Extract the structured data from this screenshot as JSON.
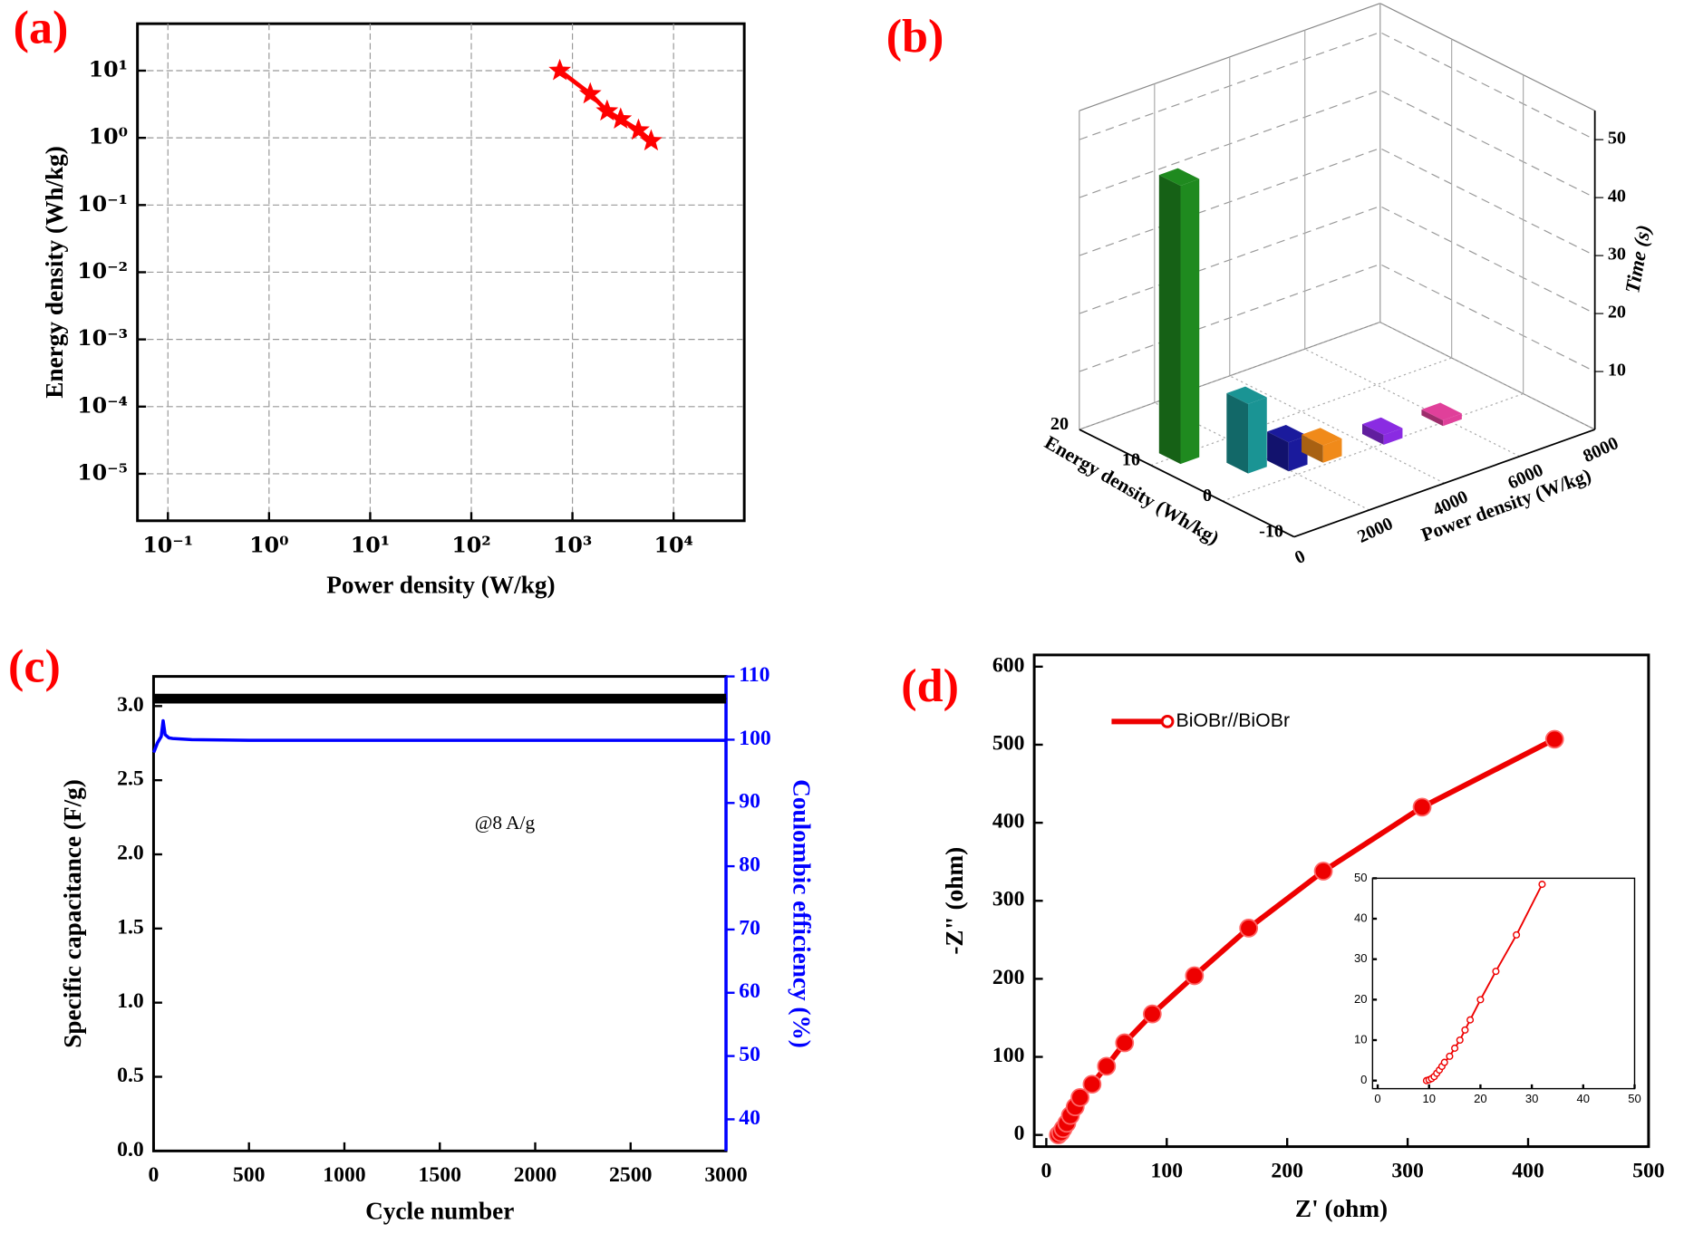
{
  "chart_data": [
    {
      "type": "line",
      "panel_label": "(a)",
      "x_label": "Power density (W/kg)",
      "y_label": "Energy density (Wh/kg)",
      "xlog": true,
      "ylog": true,
      "xlim": [
        0.05,
        50000
      ],
      "ylim": [
        2e-06,
        50
      ],
      "grid": true,
      "xticks": [
        {
          "value": 0.1,
          "label": "10⁻¹"
        },
        {
          "value": 1,
          "label": "10⁰"
        },
        {
          "value": 10,
          "label": "10¹"
        },
        {
          "value": 100,
          "label": "10²"
        },
        {
          "value": 1000,
          "label": "10³"
        },
        {
          "value": 10000,
          "label": "10⁴"
        }
      ],
      "yticks": [
        {
          "value": 1e-05,
          "label": "10⁻⁵"
        },
        {
          "value": 0.0001,
          "label": "10⁻⁴"
        },
        {
          "value": 0.001,
          "label": "10⁻³"
        },
        {
          "value": 0.01,
          "label": "10⁻²"
        },
        {
          "value": 0.1,
          "label": "10⁻¹"
        },
        {
          "value": 1,
          "label": "10⁰"
        },
        {
          "value": 10,
          "label": "10¹"
        }
      ],
      "x": [
        750,
        1500,
        2200,
        3000,
        4500,
        6000
      ],
      "series": [
        {
          "color": "#ff0000",
          "marker": "star",
          "values": [
            10,
            4.5,
            2.5,
            1.9,
            1.3,
            0.9
          ]
        }
      ]
    },
    {
      "type": "bar3d",
      "panel_label": "(b)",
      "x_label": "Power density (W/kg)",
      "y_label": "Energy density (Wh/kg)",
      "z_label": "Time (s)",
      "xlim": [
        0,
        8000
      ],
      "ylim": [
        -10,
        20
      ],
      "zlim": [
        0,
        55
      ],
      "xticks": [
        0,
        2000,
        4000,
        6000,
        8000
      ],
      "yticks": [
        -10,
        0,
        10,
        20
      ],
      "zticks": [
        10,
        20,
        30,
        40,
        50
      ],
      "power": [
        750,
        1500,
        2200,
        3000,
        4500,
        6000
      ],
      "energy": [
        10,
        4.5,
        2.5,
        1.9,
        1.3,
        0.9
      ],
      "values": [
        48,
        12,
        5,
        3,
        1.7,
        1
      ],
      "colors": [
        "#1f8a1f",
        "#1a9494",
        "#1a1a9c",
        "#f08a1a",
        "#8a2be2",
        "#e0409a"
      ]
    },
    {
      "type": "line",
      "panel_label": "(c)",
      "x_label": "Cycle number",
      "y_label": "Specific capacitance (F/g)",
      "y2_label": "Coulombic efficiency (%)",
      "annotation": "@8 A/g",
      "xlim": [
        0,
        3000
      ],
      "ylim": [
        0,
        3.2
      ],
      "y2lim": [
        35,
        110
      ],
      "xticks": [
        0,
        500,
        1000,
        1500,
        2000,
        2500,
        3000
      ],
      "yticks": [
        {
          "value": 0,
          "label": "0.0"
        },
        0.5,
        {
          "value": 1,
          "label": "1.0"
        },
        1.5,
        {
          "value": 2,
          "label": "2.0"
        },
        2.5,
        {
          "value": 3,
          "label": "3.0"
        }
      ],
      "y2ticks": [
        40,
        50,
        60,
        70,
        80,
        90,
        100,
        110
      ],
      "x": [
        1,
        20,
        40,
        50,
        60,
        80,
        100,
        200,
        500,
        1000,
        1500,
        2000,
        2500,
        3000
      ],
      "series": [
        {
          "color": "#000000",
          "marker": "none",
          "values": [
            3.05,
            3.05,
            3.05,
            3.05,
            3.05,
            3.05,
            3.05,
            3.05,
            3.05,
            3.05,
            3.05,
            3.05,
            3.05,
            3.05
          ]
        },
        {
          "color": "#0000ff",
          "marker": "none",
          "axis": "y2",
          "values": [
            98,
            99.5,
            100.5,
            103,
            100.8,
            100.3,
            100.2,
            100,
            99.9,
            99.9,
            99.9,
            99.9,
            99.9,
            99.9
          ]
        }
      ]
    },
    {
      "type": "line",
      "panel_label": "(d)",
      "x_label": "Z' (ohm)",
      "y_label": "-Z\" (ohm)",
      "legend": "upper left",
      "xlim": [
        -10,
        500
      ],
      "ylim": [
        -15,
        615
      ],
      "xticks": [
        0,
        100,
        200,
        300,
        400,
        500
      ],
      "yticks": [
        0,
        100,
        200,
        300,
        400,
        500,
        600
      ],
      "x": [
        10,
        12,
        14,
        17,
        20,
        24,
        28,
        38,
        50,
        65,
        88,
        123,
        168,
        230,
        312,
        422
      ],
      "series": [
        {
          "name": "BiOBr//BiOBr",
          "color": "#ee0000",
          "marker": "circle",
          "values": [
            0,
            3,
            8,
            15,
            25,
            36,
            48,
            65,
            88,
            118,
            155,
            204,
            265,
            338,
            420,
            507
          ]
        }
      ]
    },
    {
      "type": "line",
      "xlim": [
        -1,
        50
      ],
      "ylim": [
        -2,
        50
      ],
      "xticks": [
        0,
        10,
        20,
        30,
        40,
        50
      ],
      "yticks": [
        0,
        10,
        20,
        30,
        40,
        50
      ],
      "x": [
        9.5,
        10,
        10.5,
        11,
        11.5,
        12,
        12.5,
        13,
        14,
        15,
        16,
        17,
        18,
        20,
        23,
        27,
        32
      ],
      "series": [
        {
          "color": "#ee0000",
          "marker": "circle-open",
          "values": [
            0,
            0.2,
            0.5,
            1,
            1.8,
            2.6,
            3.5,
            4.5,
            6,
            8,
            10,
            12.5,
            15,
            20,
            27,
            36,
            48.5
          ]
        }
      ]
    }
  ]
}
